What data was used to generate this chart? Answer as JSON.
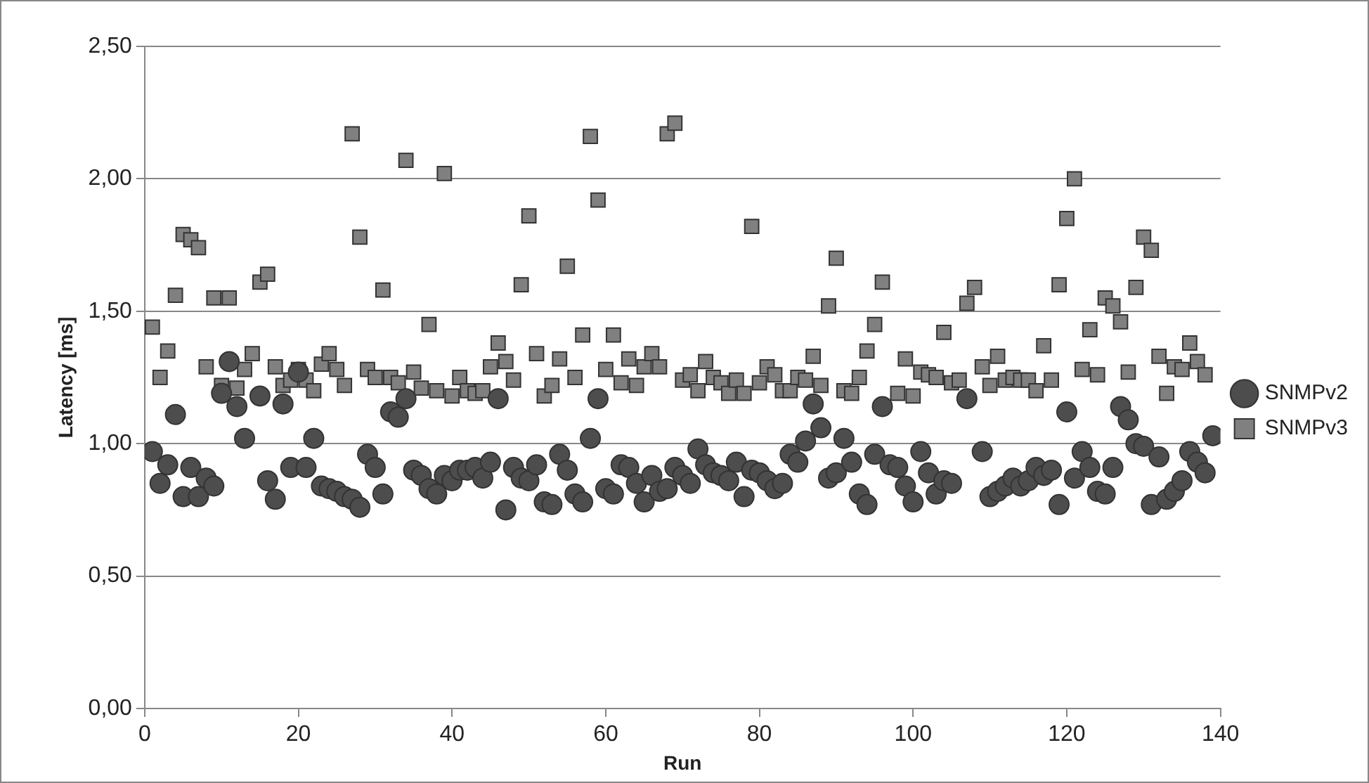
{
  "chart_data": {
    "type": "scatter",
    "xlabel": "Run",
    "ylabel": "Latency [ms]",
    "xlim": [
      0,
      140
    ],
    "xticks": [
      0,
      20,
      40,
      60,
      80,
      100,
      120,
      140
    ],
    "ylim": [
      0,
      2.5
    ],
    "yticks": [
      {
        "value": 0,
        "label": "0,00"
      },
      {
        "value": 0.5,
        "label": "0,50"
      },
      {
        "value": 1,
        "label": "1,00"
      },
      {
        "value": 1.5,
        "label": "1,50"
      },
      {
        "value": 2,
        "label": "2,00"
      },
      {
        "value": 2.5,
        "label": "2,50"
      }
    ],
    "grid": "y",
    "legend": "right",
    "x": [
      1,
      2,
      3,
      4,
      5,
      6,
      7,
      8,
      9,
      10,
      11,
      12,
      13,
      14,
      15,
      16,
      17,
      18,
      19,
      20,
      21,
      22,
      23,
      24,
      25,
      26,
      27,
      28,
      29,
      30,
      31,
      32,
      33,
      34,
      35,
      36,
      37,
      38,
      39,
      40,
      41,
      42,
      43,
      44,
      45,
      46,
      47,
      48,
      49,
      50,
      51,
      52,
      53,
      54,
      55,
      56,
      57,
      58,
      59,
      60,
      61,
      62,
      63,
      64,
      65,
      66,
      67,
      68,
      69,
      70,
      71,
      72,
      73,
      74,
      75,
      76,
      77,
      78,
      79,
      80,
      81,
      82,
      83,
      84,
      85,
      86,
      87,
      88,
      89,
      90,
      91,
      92,
      93,
      94,
      95,
      96,
      97,
      98,
      99,
      100,
      101,
      102,
      103,
      104,
      105,
      106,
      107,
      108,
      109,
      110,
      111,
      112,
      113,
      114,
      115,
      116,
      117,
      118,
      119,
      120,
      121,
      122,
      123,
      124,
      125,
      126,
      127,
      128,
      129,
      130,
      131,
      132,
      133,
      134,
      135,
      136,
      137,
      138,
      139
    ],
    "series": [
      {
        "name": "SNMPv2",
        "color": "#4d4d4d",
        "marker": "circle",
        "values": [
          0.97,
          0.85,
          0.92,
          1.11,
          0.8,
          0.91,
          0.8,
          0.87,
          0.84,
          1.19,
          1.31,
          1.14,
          1.02,
          null,
          1.18,
          0.86,
          0.79,
          1.15,
          0.91,
          1.27,
          0.91,
          1.02,
          0.84,
          0.83,
          0.82,
          0.8,
          0.79,
          0.76,
          0.96,
          0.91,
          0.81,
          1.12,
          1.1,
          1.17,
          0.9,
          0.88,
          0.83,
          0.81,
          0.88,
          0.86,
          0.9,
          0.9,
          0.91,
          0.87,
          0.93,
          1.17,
          0.75,
          0.91,
          0.87,
          0.86,
          0.92,
          0.78,
          0.77,
          0.96,
          0.9,
          0.81,
          0.78,
          1.02,
          1.17,
          0.83,
          0.81,
          0.92,
          0.91,
          0.85,
          0.78,
          0.88,
          0.82,
          0.83,
          0.91,
          0.88,
          0.85,
          0.98,
          0.92,
          0.89,
          0.88,
          0.86,
          0.93,
          0.8,
          0.9,
          0.89,
          0.86,
          0.83,
          0.85,
          0.96,
          0.93,
          1.01,
          1.15,
          1.06,
          0.87,
          0.89,
          1.02,
          0.93,
          0.81,
          0.77,
          0.96,
          1.14,
          0.92,
          0.91,
          0.84,
          0.78,
          0.97,
          0.89,
          0.81,
          0.86,
          0.85,
          null,
          1.17,
          null,
          0.97,
          0.8,
          0.82,
          0.84,
          0.87,
          0.84,
          0.86,
          0.91,
          0.88,
          0.9,
          0.77,
          1.12,
          0.87,
          0.97,
          0.91,
          0.82,
          0.81,
          0.91,
          1.14,
          1.09,
          1.0,
          0.99,
          0.77,
          0.95,
          0.79,
          0.82,
          0.86,
          0.97,
          0.93,
          0.89,
          1.03
        ]
      },
      {
        "name": "SNMPv3",
        "color": "#808080",
        "marker": "square",
        "values": [
          1.44,
          1.25,
          1.35,
          1.56,
          1.79,
          1.77,
          1.74,
          1.29,
          1.55,
          1.22,
          1.55,
          1.21,
          1.28,
          1.34,
          1.61,
          1.64,
          1.29,
          1.22,
          1.24,
          1.28,
          1.24,
          1.2,
          1.3,
          1.34,
          1.28,
          1.22,
          2.17,
          1.78,
          1.28,
          1.25,
          1.58,
          1.25,
          1.23,
          2.07,
          1.27,
          1.21,
          1.45,
          1.2,
          2.02,
          1.18,
          1.25,
          1.2,
          1.19,
          1.2,
          1.29,
          1.38,
          1.31,
          1.24,
          1.6,
          1.86,
          1.34,
          1.18,
          1.22,
          1.32,
          1.67,
          1.25,
          1.41,
          2.16,
          1.92,
          1.28,
          1.41,
          1.23,
          1.32,
          1.22,
          1.29,
          1.34,
          1.29,
          2.17,
          2.21,
          1.24,
          1.26,
          1.2,
          1.31,
          1.25,
          1.23,
          1.19,
          1.24,
          1.19,
          1.82,
          1.23,
          1.29,
          1.26,
          1.2,
          1.2,
          1.25,
          1.24,
          1.33,
          1.22,
          1.52,
          1.7,
          1.2,
          1.19,
          1.25,
          1.35,
          1.45,
          1.61,
          null,
          1.19,
          1.32,
          1.18,
          1.27,
          1.26,
          1.25,
          1.42,
          1.23,
          1.24,
          1.53,
          1.59,
          1.29,
          1.22,
          1.33,
          1.24,
          1.25,
          1.24,
          1.24,
          1.2,
          1.37,
          1.24,
          1.6,
          1.85,
          2.0,
          1.28,
          1.43,
          1.26,
          1.55,
          1.52,
          1.46,
          1.27,
          1.59,
          1.78,
          1.73,
          1.33,
          1.19,
          1.29,
          1.28,
          1.38,
          1.31,
          1.26,
          null
        ]
      }
    ]
  }
}
